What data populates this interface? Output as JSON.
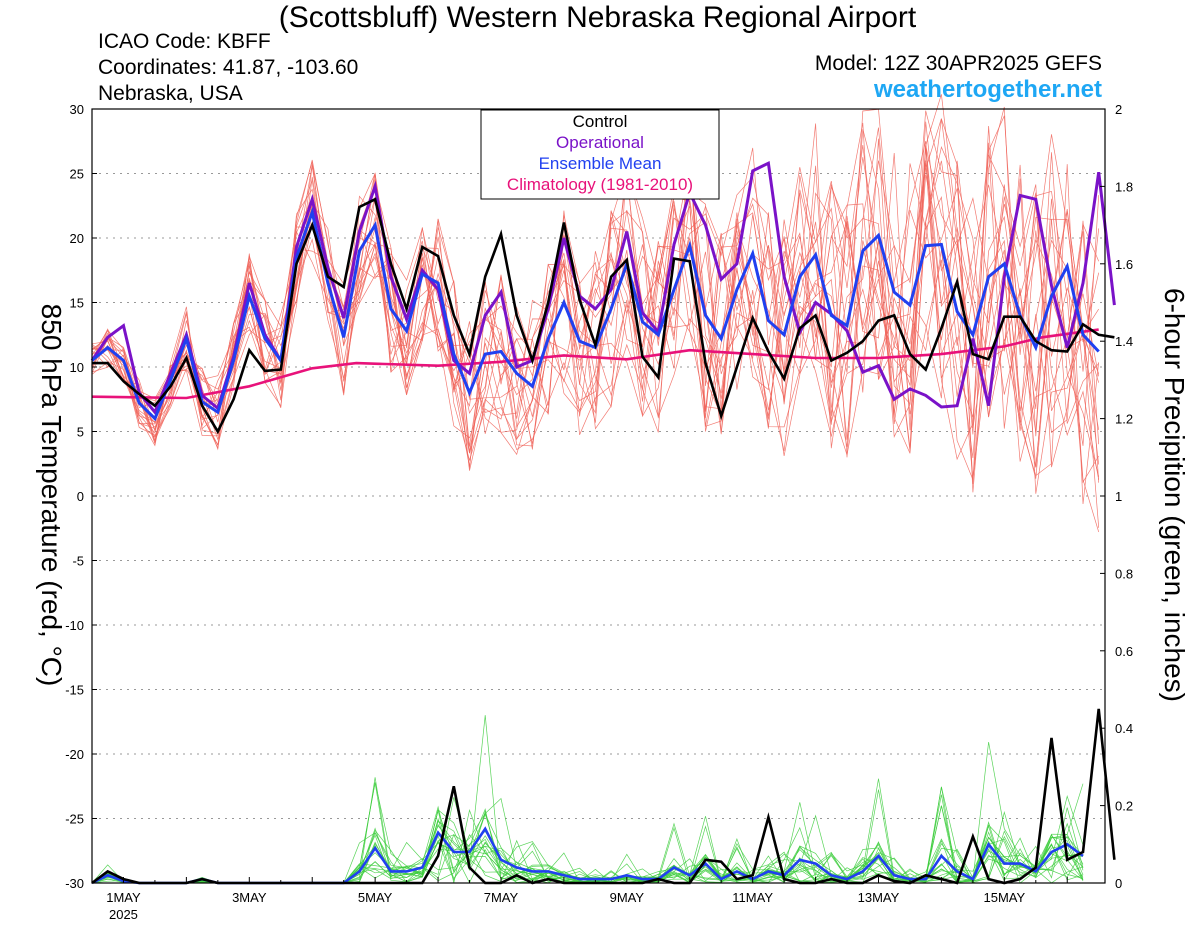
{
  "header": {
    "title": "(Scottsbluff) Western Nebraska Regional Airport",
    "icao": "ICAO Code: KBFF",
    "coords": "Coordinates: 41.87, -103.60",
    "region": "Nebraska, USA",
    "model": "Model: 12Z 30APR2025 GEFS",
    "site": "weathertogether.net"
  },
  "colors": {
    "control": "#000000",
    "operational": "#7a12c8",
    "mean": "#2040f0",
    "climatology": "#e8127a",
    "temp_members": "#f0645a",
    "precip_members": "#3ccc3c"
  },
  "chart_data": {
    "type": "line",
    "ylabel_left": "850 hPa Temperature (red, °C)",
    "ylabel_right": "6-hour Precipition (green, inches)",
    "ylim_left": [
      -30,
      30
    ],
    "ylim_right": [
      0,
      2
    ],
    "yticks_left": [
      "30",
      "25",
      "20",
      "15",
      "10",
      "5",
      "0",
      "-5",
      "-10",
      "-15",
      "-20",
      "-25",
      "-30"
    ],
    "yticks_right": [
      "2",
      "1.8",
      "1.6",
      "1.4",
      "1.2",
      "1",
      "0.8",
      "0.6",
      "0.4",
      "0.2",
      "0"
    ],
    "x_labels": [
      {
        "day": 1,
        "label": "1MAY",
        "sub": "2025"
      },
      {
        "day": 3,
        "label": "3MAY",
        "sub": ""
      },
      {
        "day": 5,
        "label": "5MAY",
        "sub": ""
      },
      {
        "day": 7,
        "label": "7MAY",
        "sub": ""
      },
      {
        "day": 9,
        "label": "9MAY",
        "sub": ""
      },
      {
        "day": 11,
        "label": "11MAY",
        "sub": ""
      },
      {
        "day": 13,
        "label": "13MAY",
        "sub": ""
      },
      {
        "day": 15,
        "label": "15MAY",
        "sub": ""
      }
    ],
    "x_start_day": 0.5,
    "x_step_days": 0.25,
    "legend": [
      "Control",
      "Operational",
      "Ensemble Mean",
      "Climatology (1981-2010)"
    ],
    "legend_position": "top-center",
    "grid": "horizontal dotted",
    "series": [
      {
        "name": "Control",
        "axis": "left",
        "values": [
          10.3,
          10.3,
          8.9,
          7.9,
          7,
          8.5,
          10.7,
          7,
          5,
          7.5,
          11.3,
          9.7,
          9.8,
          18,
          21,
          17,
          16.2,
          22.4,
          23,
          18,
          14.5,
          19.3,
          18.6,
          14,
          11,
          17,
          20.3,
          14,
          10.5,
          15,
          21.2,
          15.2,
          11.7,
          17,
          18.3,
          10.8,
          9.2,
          18.4,
          18.2,
          10.3,
          6.2,
          10,
          13.8,
          11.2,
          9.1,
          13,
          14,
          10.5,
          11.1,
          12,
          13.6,
          14,
          11,
          9.8,
          13,
          16.6,
          11,
          10.6,
          13.9,
          13.9,
          12,
          11.3,
          11.2,
          13.3,
          12.5,
          12.3
        ]
      },
      {
        "name": "Operational",
        "axis": "left",
        "values": [
          10.5,
          12.3,
          13.2,
          8,
          6.5,
          9.5,
          12.5,
          7.8,
          6.8,
          10.8,
          16.5,
          12.5,
          10.5,
          19.3,
          23,
          17.7,
          13.8,
          20.5,
          24,
          17,
          13.7,
          17.5,
          16,
          10.5,
          9.5,
          14,
          15.8,
          10,
          10.5,
          14.5,
          20,
          15.5,
          14.5,
          16,
          20.5,
          14.2,
          12.7,
          19.5,
          23.5,
          21,
          16.8,
          18,
          25.2,
          25.8,
          17,
          12.7,
          15,
          14.1,
          12.8,
          9.6,
          10.1,
          7.5,
          8.3,
          7.8,
          6.9,
          7,
          12.2,
          7,
          17,
          23.3,
          23,
          16.3,
          11.5,
          16.5,
          25.1,
          14.8
        ]
      },
      {
        "name": "Ensemble Mean",
        "axis": "left",
        "values": [
          10.5,
          11.5,
          10.5,
          7.2,
          6,
          9,
          12.2,
          7.3,
          6.5,
          10.5,
          15.5,
          12.2,
          10.5,
          18.5,
          22,
          16.5,
          12.3,
          19,
          21,
          14.5,
          12.8,
          17.2,
          16.5,
          11,
          8,
          11,
          11.2,
          9.5,
          8.5,
          12.2,
          15,
          12,
          11.5,
          14.5,
          18,
          13.5,
          12.5,
          16,
          19.4,
          14,
          12.2,
          16,
          18.8,
          13.6,
          12.5,
          17,
          18.7,
          14,
          13.2,
          19,
          20.2,
          15.8,
          14.8,
          19.4,
          19.5,
          14.3,
          12.5,
          17,
          18,
          14,
          11.5,
          15.5,
          17.8,
          12.5,
          11.2
        ]
      },
      {
        "name": "Climatology (1981-2010)",
        "axis": "left",
        "points": [
          [
            0.5,
            7.7
          ],
          [
            2,
            7.6
          ],
          [
            3,
            8.5
          ],
          [
            4,
            9.9
          ],
          [
            4.7,
            10.3
          ],
          [
            6,
            10.1
          ],
          [
            7,
            10.4
          ],
          [
            8,
            10.9
          ],
          [
            9,
            10.6
          ],
          [
            10,
            11.3
          ],
          [
            11,
            11
          ],
          [
            12,
            10.7
          ],
          [
            13,
            10.7
          ],
          [
            14,
            11
          ],
          [
            15,
            11.6
          ],
          [
            15.6,
            12.3
          ],
          [
            16.5,
            12.9
          ]
        ]
      },
      {
        "name": "Control",
        "axis": "right",
        "values": [
          0,
          0.03,
          0.01,
          0,
          0,
          0,
          0,
          0.01,
          0,
          0,
          0,
          0,
          0,
          0,
          0,
          0,
          0,
          0,
          0,
          0,
          0,
          0,
          0.07,
          0.25,
          0.04,
          0,
          0,
          0.02,
          0,
          0.01,
          0,
          0,
          0,
          0,
          0,
          0,
          0.01,
          0,
          0,
          0.06,
          0.055,
          0.01,
          0.02,
          0.17,
          0.01,
          0,
          0,
          0.01,
          0,
          0,
          0.02,
          0.005,
          0,
          0.02,
          0.01,
          0,
          0.12,
          0.01,
          0,
          0.01,
          0.04,
          0.375,
          0.06,
          0.08,
          0.45,
          0.06
        ]
      },
      {
        "name": "Ensemble Mean",
        "axis": "right",
        "values": [
          0,
          0.02,
          0.005,
          0,
          0,
          0,
          0,
          0.01,
          0,
          0,
          0,
          0,
          0,
          0,
          0,
          0,
          0,
          0.03,
          0.09,
          0.03,
          0.03,
          0.04,
          0.13,
          0.08,
          0.08,
          0.14,
          0.06,
          0.04,
          0.03,
          0.03,
          0.02,
          0.01,
          0.01,
          0.01,
          0.02,
          0.01,
          0.01,
          0.04,
          0.02,
          0.05,
          0.01,
          0.03,
          0.01,
          0.03,
          0.02,
          0.06,
          0.05,
          0.02,
          0.01,
          0.03,
          0.07,
          0.02,
          0.01,
          0.01,
          0.07,
          0.03,
          0.01,
          0.1,
          0.05,
          0.05,
          0.03,
          0.08,
          0.1,
          0.07
        ]
      }
    ],
    "ensemble_members_note": "Thin red = GEFS member temperatures; thin green = GEFS member precipitation"
  }
}
